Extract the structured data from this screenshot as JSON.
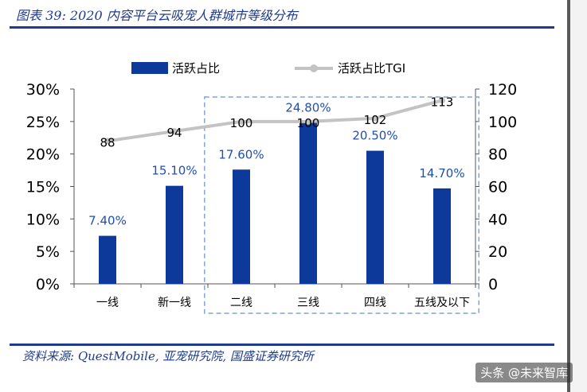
{
  "title": "图表 39:  2020 内容平台云吸宠人群城市等级分布",
  "source": "资料来源:  QuestMobile,  亚宠研究院,  国盛证券研究所",
  "watermark": "头条 @未来智库",
  "colors": {
    "bar": "#0d3a9a",
    "line": "#c3c3c3",
    "accent": "#1f3b8f",
    "bar_label": "#1f4fb3",
    "highlight_box": "#7ea6d8"
  },
  "chart_data": {
    "type": "bar",
    "categories": [
      "一线",
      "新一线",
      "二线",
      "三线",
      "四线",
      "五线及以下"
    ],
    "series": [
      {
        "name": "活跃占比",
        "type": "bar",
        "axis": "left",
        "values": [
          7.4,
          15.1,
          17.6,
          24.8,
          20.5,
          14.7
        ],
        "labels": [
          "7.40%",
          "15.10%",
          "17.60%",
          "24.80%",
          "20.50%",
          "14.70%"
        ]
      },
      {
        "name": "活跃占比TGI",
        "type": "line",
        "axis": "right",
        "values": [
          88,
          94,
          100,
          100,
          102,
          113
        ],
        "labels": [
          "88",
          "94",
          "100",
          "100",
          "102",
          "113"
        ]
      }
    ],
    "y_left": {
      "ylim": [
        0,
        30
      ],
      "ticks": [
        "0%",
        "5%",
        "10%",
        "15%",
        "20%",
        "25%",
        "30%"
      ],
      "values": [
        0,
        5,
        10,
        15,
        20,
        25,
        30
      ]
    },
    "y_right": {
      "ylim": [
        0,
        120
      ],
      "ticks": [
        "0",
        "20",
        "40",
        "60",
        "80",
        "100",
        "120"
      ],
      "values": [
        0,
        20,
        40,
        60,
        80,
        100,
        120
      ]
    },
    "grid": false,
    "legend_position": "top",
    "highlight": {
      "from": "二线",
      "to": "五线及以下",
      "style": "dashed box"
    }
  }
}
